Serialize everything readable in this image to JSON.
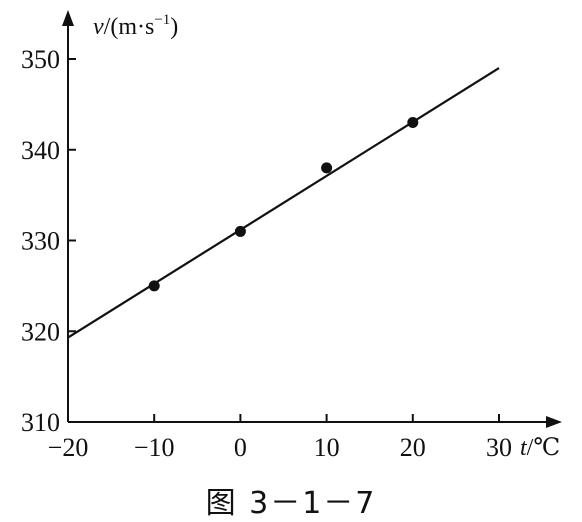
{
  "chart_data": {
    "type": "scatter",
    "ylabel_var": "v",
    "ylabel_unit": "/(m·s",
    "ylabel_exp": "−1",
    "ylabel_close": ")",
    "xlabel_var": "t",
    "xlabel_unit": "/℃",
    "xlim": [
      -20,
      35
    ],
    "ylim": [
      310,
      355
    ],
    "x_ticks": [
      -20,
      -10,
      0,
      10,
      20,
      30
    ],
    "x_tick_labels": [
      "−20",
      "−10",
      "0",
      "10",
      "20",
      "30"
    ],
    "y_ticks": [
      310,
      320,
      330,
      340,
      350
    ],
    "y_tick_labels": [
      "310",
      "320",
      "330",
      "340",
      "350"
    ],
    "grid": false,
    "series": [
      {
        "points": [
          {
            "x": -10,
            "y": 325
          },
          {
            "x": 0,
            "y": 331
          },
          {
            "x": 10,
            "y": 338
          },
          {
            "x": 20,
            "y": 343
          }
        ]
      }
    ],
    "fit_line": {
      "x": [
        -20,
        30
      ],
      "y": [
        319.3,
        349
      ]
    }
  },
  "caption": "图 3－1－7"
}
